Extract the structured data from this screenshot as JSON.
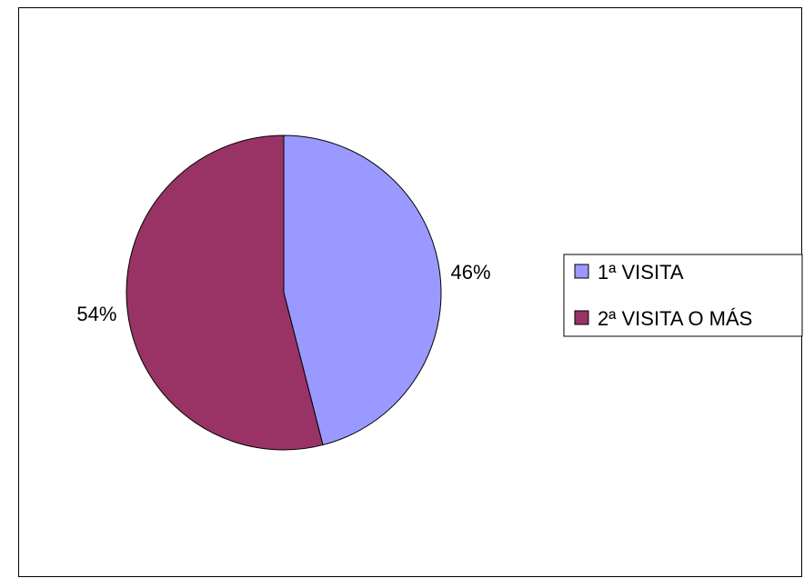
{
  "chart_data": {
    "type": "pie",
    "categories": [
      "1ª VISITA",
      "2ª VISITA O MÁS"
    ],
    "values": [
      46,
      54
    ],
    "data_labels": [
      "46%",
      "54%"
    ],
    "colors": [
      "#9999ff",
      "#993366"
    ],
    "start_angle_deg": 0,
    "direction": "clockwise",
    "legend_position": "right"
  }
}
